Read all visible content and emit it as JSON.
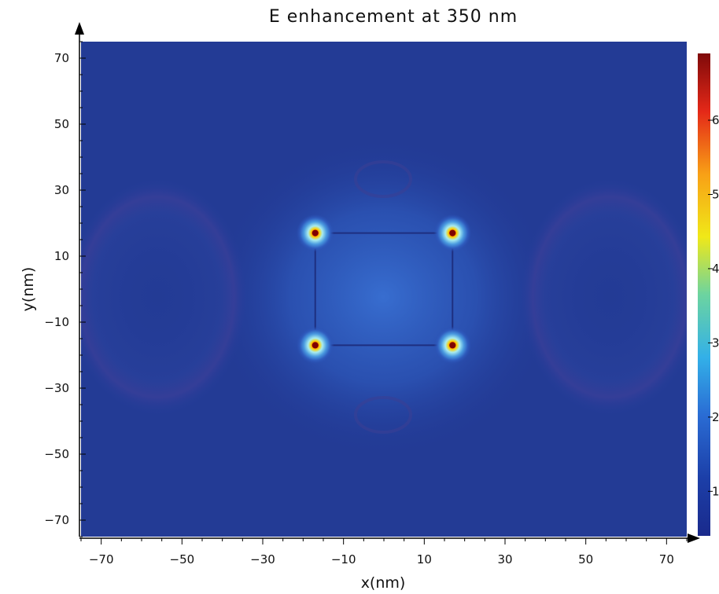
{
  "chart_data": {
    "type": "heatmap",
    "title": "E enhancement at 350 nm",
    "xlabel": "x(nm)",
    "ylabel": "y(nm)",
    "xlim": [
      -75,
      75
    ],
    "ylim": [
      -75,
      75
    ],
    "x_ticks": [
      -70,
      -50,
      -30,
      -10,
      10,
      30,
      50,
      70
    ],
    "y_ticks": [
      70,
      50,
      30,
      10,
      -10,
      -30,
      -50,
      -70
    ],
    "x_tick_labels": [
      "−70",
      "−50",
      "−30",
      "−10",
      "10",
      "30",
      "50",
      "70"
    ],
    "y_tick_labels": [
      "70",
      "50",
      "30",
      "10",
      "−10",
      "−30",
      "−50",
      "−70"
    ],
    "colorbar": {
      "range": [
        0.4,
        6.9
      ],
      "colormap": "jet",
      "tick_values": [
        6,
        5,
        4,
        3,
        2,
        1
      ],
      "tick_labels": [
        "6",
        "5",
        "4",
        "3",
        "2",
        "1"
      ]
    },
    "square": {
      "x_min": -17,
      "x_max": 17,
      "y_min": -17,
      "y_max": 17
    },
    "hotspots": [
      {
        "x": -17,
        "y": 17,
        "value": 6.9
      },
      {
        "x": 17,
        "y": 17,
        "value": 6.9
      },
      {
        "x": -17,
        "y": -17,
        "value": 6.9
      },
      {
        "x": 17,
        "y": -17,
        "value": 6.9
      }
    ],
    "background_value": 1.0,
    "grid": false,
    "legend": "colorbar-right"
  },
  "colors": {
    "jet_stops": [
      "#00007f",
      "#0000ff",
      "#007fff",
      "#00ffff",
      "#7fff7f",
      "#ffff00",
      "#ff7f00",
      "#ff0000",
      "#7f0000"
    ]
  }
}
